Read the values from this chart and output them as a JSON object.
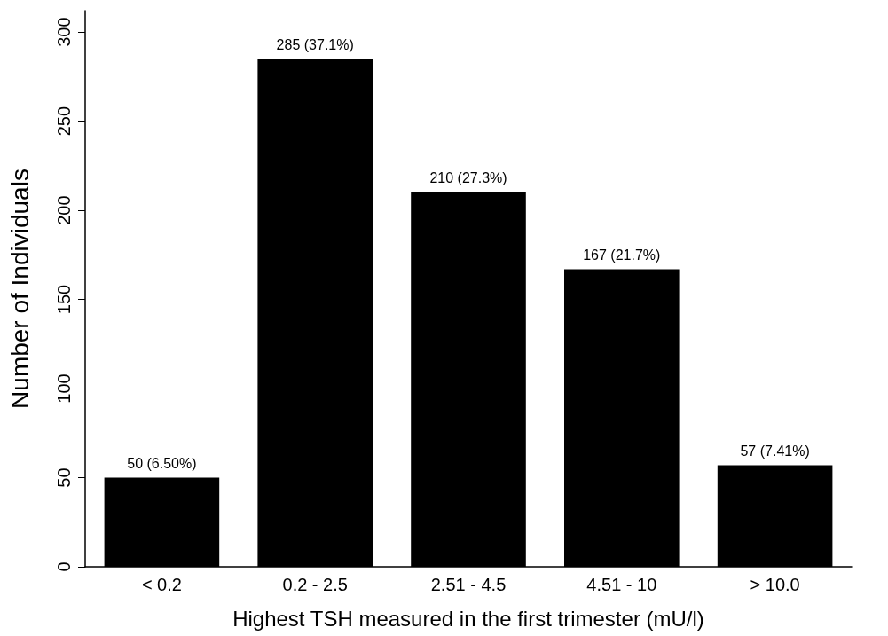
{
  "chart_data": {
    "type": "bar",
    "xlabel": "Highest TSH measured in the first trimester (mU/l)",
    "ylabel": "Number of Individuals",
    "categories": [
      "< 0.2",
      "0.2 - 2.5",
      "2.51 - 4.5",
      "4.51 - 10",
      "> 10.0"
    ],
    "values": [
      50,
      285,
      210,
      167,
      57
    ],
    "value_labels": [
      "50 (6.50%)",
      "285 (37.1%)",
      "210 (27.3%)",
      "167 (21.7%)",
      "57 (7.41%)"
    ],
    "color": "#000000",
    "ylim": [
      0,
      312
    ],
    "yticks": [
      0,
      50,
      100,
      150,
      200,
      250,
      300
    ],
    "grid": false
  }
}
